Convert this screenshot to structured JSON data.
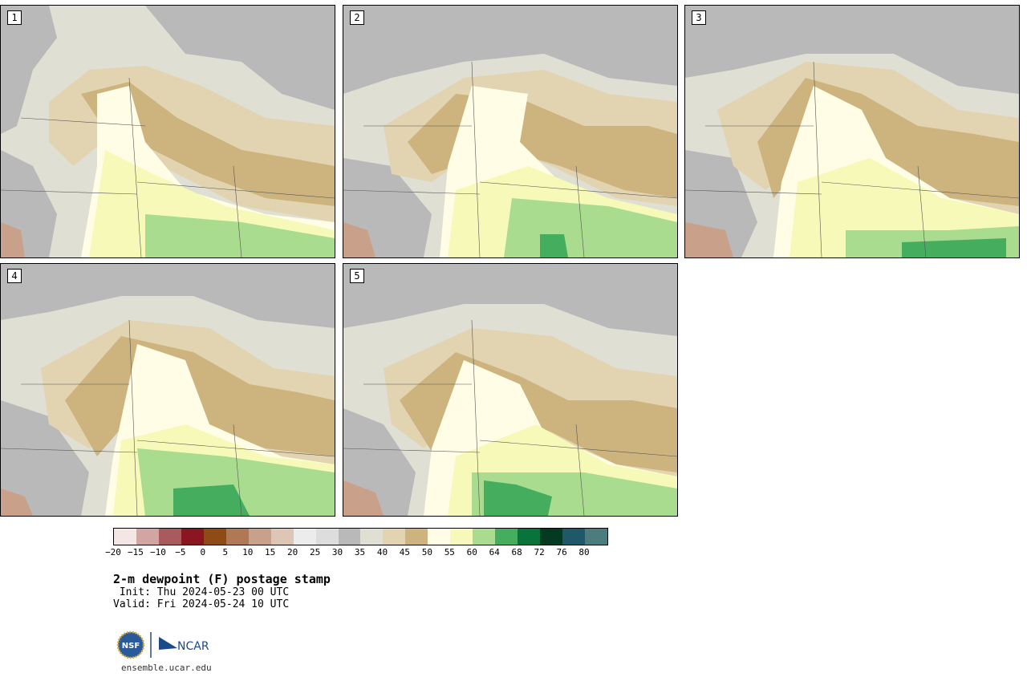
{
  "panels": [
    {
      "label": "1"
    },
    {
      "label": "2"
    },
    {
      "label": "3"
    },
    {
      "label": "4"
    },
    {
      "label": "5"
    }
  ],
  "colorbar": {
    "colors": [
      "#f3e6e5",
      "#d2a4a4",
      "#a85a5c",
      "#8a1622",
      "#8e4b14",
      "#b07955",
      "#c9a08a",
      "#ddc6b5",
      "#ececec",
      "#dddddd",
      "#b9b9b9",
      "#e0dfd3",
      "#e2d4b0",
      "#cdb47f",
      "#fffde6",
      "#f6f9b8",
      "#a9dc8e",
      "#45ad5e",
      "#08743b",
      "#043a22",
      "#1f5869",
      "#4d7c7c"
    ],
    "ticks": [
      "−20",
      "−15",
      "−10",
      "−5",
      "0",
      "5",
      "10",
      "15",
      "20",
      "25",
      "30",
      "35",
      "40",
      "45",
      "50",
      "55",
      "60",
      "64",
      "68",
      "72",
      "76",
      "80"
    ]
  },
  "header": {
    "title": "2-m dewpoint (F) postage stamp",
    "init": " Init: Thu 2024-05-23 00 UTC",
    "valid": "Valid: Fri 2024-05-24 10 UTC"
  },
  "logos": {
    "nsf_text": "NSF",
    "ncar_text": "NCAR",
    "url": "ensemble.ucar.edu"
  },
  "colors": {
    "gray_dark": "#b9b9b9",
    "gray_light": "#dddddd",
    "beige": "#e0dfd3",
    "tan_light": "#e2d4b0",
    "tan": "#cdb47f",
    "cream": "#fffde6",
    "yellow": "#f6f9b8",
    "green_light": "#a9dc8e",
    "green": "#45ad5e"
  }
}
